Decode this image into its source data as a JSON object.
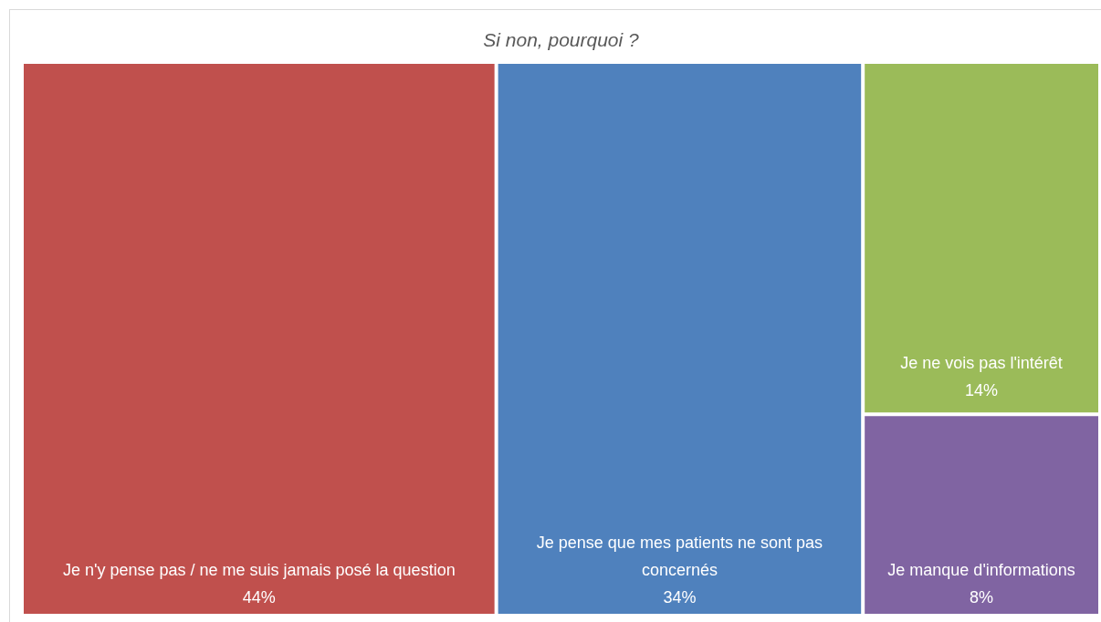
{
  "chart_data": {
    "type": "other",
    "title": "Si non, pourquoi ?",
    "categories": [
      "Je n'y pense pas / ne me suis jamais posé la question",
      "Je pense que mes patients ne sont pas concernés",
      "Je ne vois pas l'intérêt",
      "Je manque d'informations"
    ],
    "values": [
      44,
      34,
      14,
      8
    ],
    "value_labels": [
      "44%",
      "34%",
      "14%",
      "8%"
    ],
    "colors": [
      "#c0504d",
      "#4f81bd",
      "#9bbb59",
      "#8064a2"
    ]
  }
}
